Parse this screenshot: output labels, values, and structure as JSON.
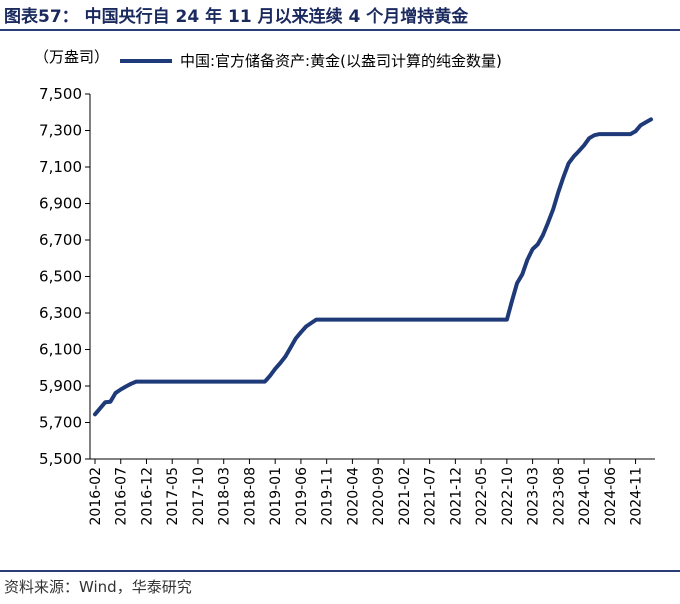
{
  "title": "图表57： 中国央行自 24 年 11 月以来连续 4 个月增持黄金",
  "source": "资料来源：Wind，华泰研究",
  "colors": {
    "line": "#1f3a78",
    "header": "#1a2a5e"
  },
  "chart_data": {
    "type": "line",
    "title": "",
    "ylabel": "（万盎司）",
    "xlabel": "",
    "legend": "top-left",
    "grid": false,
    "ylim": [
      5500,
      7500
    ],
    "yticks": [
      5500,
      5700,
      5900,
      6100,
      6300,
      6500,
      6700,
      6900,
      7100,
      7300,
      7500
    ],
    "ytick_labels": [
      "5,500",
      "5,700",
      "5,900",
      "6,100",
      "6,300",
      "6,500",
      "6,700",
      "6,900",
      "7,100",
      "7,300",
      "7,500"
    ],
    "xtick_labels": [
      "2016-02",
      "2016-07",
      "2016-12",
      "2017-05",
      "2017-10",
      "2018-03",
      "2018-08",
      "2019-01",
      "2019-06",
      "2019-11",
      "2020-04",
      "2020-09",
      "2021-02",
      "2021-07",
      "2021-12",
      "2022-05",
      "2022-10",
      "2023-03",
      "2023-08",
      "2024-01",
      "2024-06",
      "2024-11"
    ],
    "series": [
      {
        "name": "中国:官方储备资产:黄金(以盎司计算的纯金数量)",
        "x": [
          "2016-02",
          "2016-03",
          "2016-04",
          "2016-05",
          "2016-06",
          "2016-07",
          "2016-08",
          "2016-09",
          "2016-10",
          "2016-11",
          "2016-12",
          "2018-11",
          "2018-12",
          "2019-01",
          "2019-02",
          "2019-03",
          "2019-04",
          "2019-05",
          "2019-06",
          "2019-07",
          "2019-08",
          "2019-09",
          "2022-10",
          "2022-11",
          "2022-12",
          "2023-01",
          "2023-02",
          "2023-03",
          "2023-04",
          "2023-05",
          "2023-06",
          "2023-07",
          "2023-08",
          "2023-09",
          "2023-10",
          "2023-11",
          "2023-12",
          "2024-01",
          "2024-02",
          "2024-03",
          "2024-04",
          "2024-10",
          "2024-11",
          "2024-12",
          "2025-01",
          "2025-02"
        ],
        "values": [
          5745,
          5778,
          5811,
          5814,
          5862,
          5881,
          5897,
          5912,
          5924,
          5924,
          5924,
          5924,
          5956,
          5994,
          6026,
          6062,
          6111,
          6161,
          6194,
          6226,
          6245,
          6264,
          6264,
          6367,
          6464,
          6512,
          6592,
          6650,
          6676,
          6727,
          6795,
          6869,
          6962,
          7046,
          7120,
          7158,
          7187,
          7219,
          7258,
          7274,
          7280,
          7280,
          7296,
          7329,
          7345,
          7361
        ]
      }
    ]
  }
}
